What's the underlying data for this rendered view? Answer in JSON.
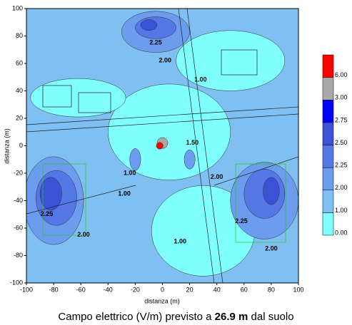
{
  "chart_data": {
    "type": "contour",
    "xlabel": "distanza (m)",
    "ylabel": "distanza (m)",
    "xlim": [
      -100,
      100
    ],
    "ylim": [
      -100,
      100
    ],
    "xticks": [
      -100,
      -80,
      -60,
      -40,
      -20,
      0,
      20,
      40,
      60,
      80,
      100
    ],
    "yticks": [
      -100,
      -80,
      -60,
      -40,
      -20,
      0,
      20,
      40,
      60,
      80,
      100
    ],
    "grid": false,
    "caption": [
      "Campo elettrico (V/m) previsto a ",
      "26.9 m",
      " dal suolo"
    ],
    "colorbar": {
      "levels": [
        {
          "value": 0,
          "label": "0.00"
        },
        {
          "value": 1,
          "label": "1.00"
        },
        {
          "value": 2,
          "label": "2.00"
        },
        {
          "value": 2.25,
          "label": "2.25"
        },
        {
          "value": 2.5,
          "label": "2.50"
        },
        {
          "value": 2.75,
          "label": "2.75"
        },
        {
          "value": 3,
          "label": "3.00"
        },
        {
          "value": 6,
          "label": "6.00"
        }
      ],
      "colors": [
        "#80ffff",
        "#80bff2",
        "#6c9cee",
        "#5577e6",
        "#3a52d6",
        "#0000ff",
        "#a8a8a8",
        "#ff0000"
      ]
    },
    "regions": [
      {
        "cx": 5,
        "cy": 10,
        "rx": 45,
        "ry": 35,
        "level": 0.5
      },
      {
        "cx": 50,
        "cy": 62,
        "rx": 40,
        "ry": 22,
        "level": 0.5
      },
      {
        "cx": 30,
        "cy": -62,
        "rx": 38,
        "ry": 33,
        "level": 0.5
      },
      {
        "cx": -62,
        "cy": 35,
        "rx": 35,
        "ry": 14,
        "level": 0.5
      },
      {
        "cx": -5,
        "cy": 83,
        "rx": 25,
        "ry": 15,
        "level": 2.1
      },
      {
        "cx": -5,
        "cy": 86,
        "rx": 15,
        "ry": 8,
        "level": 2.4
      },
      {
        "cx": -10,
        "cy": 88,
        "rx": 6,
        "ry": 4,
        "level": 2.6
      },
      {
        "cx": -80,
        "cy": -40,
        "rx": 22,
        "ry": 32,
        "level": 2.1
      },
      {
        "cx": -78,
        "cy": -38,
        "rx": 15,
        "ry": 20,
        "level": 2.3
      },
      {
        "cx": -82,
        "cy": -35,
        "rx": 8,
        "ry": 12,
        "level": 2.6
      },
      {
        "cx": 75,
        "cy": -40,
        "rx": 25,
        "ry": 28,
        "level": 2.1
      },
      {
        "cx": 75,
        "cy": -35,
        "rx": 15,
        "ry": 18,
        "level": 2.3
      },
      {
        "cx": 80,
        "cy": -33,
        "rx": 6,
        "ry": 10,
        "level": 2.6
      },
      {
        "cx": -20,
        "cy": -10,
        "rx": 4,
        "ry": 8,
        "level": 2.1
      },
      {
        "cx": 20,
        "cy": -10,
        "rx": 4,
        "ry": 7,
        "level": 2.1
      },
      {
        "cx": 0,
        "cy": 2,
        "rx": 4,
        "ry": 4,
        "level": 3.5
      },
      {
        "cx": -2,
        "cy": 0,
        "rx": 2.5,
        "ry": 2.5,
        "level": 7
      }
    ],
    "contour_labels": [
      {
        "x": -5,
        "y": 75,
        "label": "2.25"
      },
      {
        "x": 2,
        "y": 62,
        "label": "2.00"
      },
      {
        "x": 28,
        "y": 48,
        "label": "1.00"
      },
      {
        "x": 22,
        "y": 2,
        "label": "1.50"
      },
      {
        "x": -24,
        "y": -20,
        "label": "1.00"
      },
      {
        "x": -28,
        "y": -35,
        "label": "1.00"
      },
      {
        "x": 40,
        "y": -23,
        "label": "2.00"
      },
      {
        "x": -58,
        "y": -65,
        "label": "2.00"
      },
      {
        "x": -85,
        "y": -50,
        "label": "2.25"
      },
      {
        "x": 58,
        "y": -55,
        "label": "2.25"
      },
      {
        "x": 80,
        "y": -75,
        "label": "2.00"
      },
      {
        "x": 13,
        "y": -70,
        "label": "1.00"
      }
    ]
  }
}
